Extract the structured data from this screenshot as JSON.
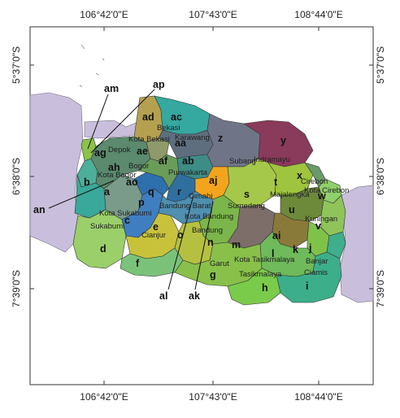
{
  "coordinates": {
    "top": [
      "106°42'0\"E",
      "107°43'0\"E",
      "108°44'0\"E"
    ],
    "bottom": [
      "106°42'0\"E",
      "107°43'0\"E",
      "108°44'0\"E"
    ],
    "left": [
      "5°37'0\"S",
      "6°38'0\"S",
      "7°39'0\"S"
    ],
    "right": [
      "5°37'0\"S",
      "6°38'0\"S",
      "7°39'0\"S"
    ]
  },
  "region_names": [
    "Bekasi",
    "Kota Bekasi",
    "Depok",
    "Bogor",
    "Kota Bogor",
    "Karawang",
    "Subang",
    "Indramayu",
    "Purwakarta",
    "Cimahi",
    "Bandung Barat",
    "Kota Bandung",
    "Bandung",
    "Sumedang",
    "Majalengka",
    "Cirebon",
    "Kota Cirebon",
    "Kuningan",
    "Sukabumi",
    "Kota Sukabumi",
    "Cianjur",
    "Garut",
    "Kota Tasikmalaya",
    "Tasikmalaya",
    "Banjar",
    "Ciamis"
  ],
  "region_codes": [
    "a",
    "b",
    "c",
    "d",
    "e",
    "f",
    "g",
    "h",
    "i",
    "j",
    "k",
    "l",
    "m",
    "n",
    "o",
    "p",
    "q",
    "r",
    "s",
    "t",
    "u",
    "v",
    "w",
    "x",
    "y",
    "z",
    "aa",
    "ab",
    "ac",
    "ad",
    "ae",
    "af",
    "ag",
    "ah",
    "ai",
    "aj",
    "ak",
    "al",
    "am",
    "an",
    "ao",
    "ap"
  ],
  "colors": {
    "sea_land_outside": "#c9bfdc",
    "border": "#3a3a3a",
    "indramayu": "#8a3a5a",
    "bandung_city": "#f2a51c"
  }
}
